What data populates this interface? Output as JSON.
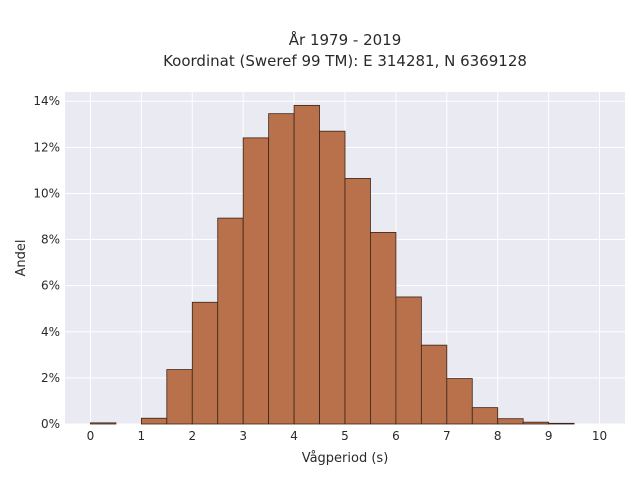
{
  "chart_data": {
    "type": "bar",
    "title": "År 1979 - 2019",
    "subtitle": "Koordinat (Sweref 99 TM): E 314281, N 6369128",
    "xlabel": "Vågperiod (s)",
    "ylabel": "Andel",
    "xlim": [
      -0.5,
      10.5
    ],
    "ylim": [
      0,
      0.144
    ],
    "xticks": [
      0,
      1,
      2,
      3,
      4,
      5,
      6,
      7,
      8,
      9,
      10
    ],
    "yticks": [
      0,
      0.02,
      0.04,
      0.06,
      0.08,
      0.1,
      0.12,
      0.14
    ],
    "ytick_labels": [
      "0%",
      "2%",
      "4%",
      "6%",
      "8%",
      "10%",
      "12%",
      "14%"
    ],
    "bin_width": 0.5,
    "bins": [
      {
        "start": 0.0,
        "value": 0.0005
      },
      {
        "start": 0.5,
        "value": 0.0
      },
      {
        "start": 1.0,
        "value": 0.0025
      },
      {
        "start": 1.5,
        "value": 0.0236
      },
      {
        "start": 2.0,
        "value": 0.0528
      },
      {
        "start": 2.5,
        "value": 0.0893
      },
      {
        "start": 3.0,
        "value": 0.1241
      },
      {
        "start": 3.5,
        "value": 0.1346
      },
      {
        "start": 4.0,
        "value": 0.1382
      },
      {
        "start": 4.5,
        "value": 0.127
      },
      {
        "start": 5.0,
        "value": 0.1065
      },
      {
        "start": 5.5,
        "value": 0.0831
      },
      {
        "start": 6.0,
        "value": 0.0551
      },
      {
        "start": 6.5,
        "value": 0.0342
      },
      {
        "start": 7.0,
        "value": 0.0197
      },
      {
        "start": 7.5,
        "value": 0.0071
      },
      {
        "start": 8.0,
        "value": 0.0023
      },
      {
        "start": 8.5,
        "value": 0.0008
      },
      {
        "start": 9.0,
        "value": 0.0003
      },
      {
        "start": 9.5,
        "value": 0.0
      }
    ],
    "grid": true,
    "colors": {
      "bar": "#b9714b",
      "bar_edge": "#3a2418",
      "plot_bg": "#e9eaf2",
      "grid": "#ffffff"
    }
  }
}
